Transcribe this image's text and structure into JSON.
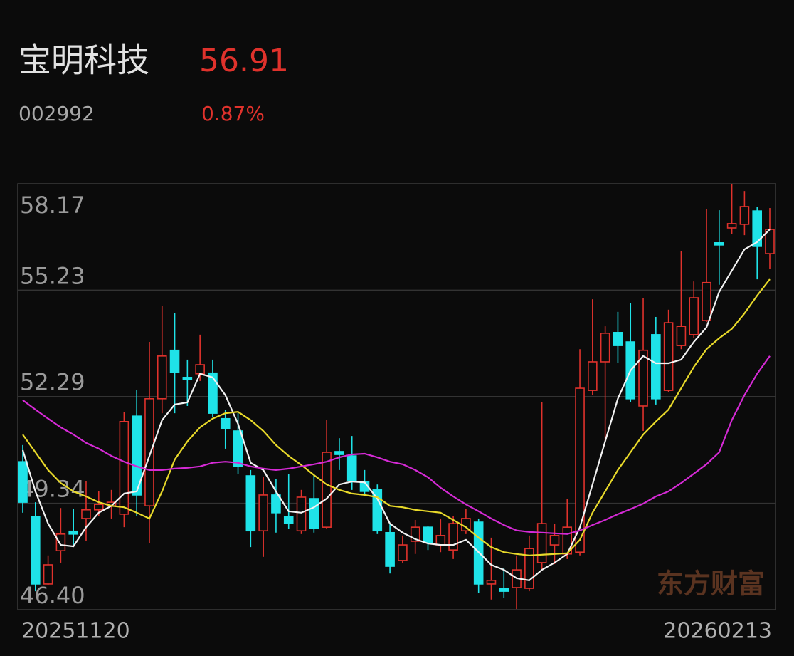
{
  "header": {
    "name": "宝明科技",
    "price": "56.91",
    "code": "002992",
    "change": "0.87%"
  },
  "chart_data": {
    "type": "candlestick",
    "categories": [
      "20251120",
      null,
      null,
      null,
      null,
      null,
      null,
      null,
      null,
      null,
      null,
      null,
      null,
      null,
      null,
      null,
      null,
      null,
      null,
      null,
      null,
      null,
      null,
      null,
      null,
      null,
      null,
      null,
      null,
      null,
      null,
      null,
      null,
      null,
      null,
      null,
      null,
      null,
      null,
      null,
      null,
      null,
      null,
      null,
      null,
      null,
      null,
      null,
      null,
      null,
      null,
      null,
      null,
      null,
      null,
      null,
      null,
      null,
      null,
      "20260213"
    ],
    "open": [
      50.49,
      48.98,
      47.11,
      48.03,
      48.57,
      48.92,
      49.16,
      49.27,
      49.04,
      51.75,
      49.27,
      52.23,
      53.57,
      52.82,
      52.92,
      52.94,
      51.68,
      51.34,
      50.1,
      48.58,
      49.57,
      48.98,
      48.58,
      49.47,
      48.68,
      50.77,
      50.65,
      49.94,
      49.71,
      48.53,
      47.76,
      48.29,
      48.68,
      48.19,
      48.05,
      48.58,
      48.82,
      47.11,
      46.99,
      47.01,
      46.99,
      47.7,
      48.19,
      47.94,
      47.99,
      52.46,
      53.25,
      54.06,
      53.8,
      52.03,
      54.0,
      52.46,
      53.7,
      54.0,
      54.39,
      56.54,
      56.95,
      57.05,
      57.42,
      56.24
    ],
    "close": [
      49.37,
      47.11,
      47.64,
      48.49,
      48.49,
      49.16,
      49.31,
      49.37,
      51.6,
      49.57,
      52.23,
      53.41,
      52.97,
      52.76,
      53.17,
      51.83,
      51.4,
      50.36,
      48.58,
      49.57,
      49.08,
      48.78,
      49.51,
      48.64,
      50.75,
      50.69,
      49.96,
      49.67,
      48.58,
      47.6,
      48.19,
      48.68,
      48.25,
      48.45,
      48.78,
      48.92,
      47.11,
      47.21,
      46.91,
      47.5,
      48.09,
      48.78,
      48.45,
      48.68,
      52.52,
      53.25,
      54.04,
      53.7,
      52.23,
      53.57,
      52.23,
      54.33,
      54.23,
      55.02,
      55.44,
      56.48,
      57.07,
      57.54,
      56.44,
      56.91
    ],
    "high": [
      50.95,
      49.37,
      47.9,
      49.21,
      49.18,
      49.96,
      49.67,
      49.71,
      51.87,
      52.48,
      53.8,
      54.79,
      54.6,
      53.31,
      54.0,
      53.31,
      51.93,
      51.83,
      50.26,
      50.06,
      50.02,
      50.16,
      49.71,
      50.16,
      51.64,
      51.14,
      51.2,
      50.26,
      49.86,
      48.78,
      48.45,
      48.88,
      48.72,
      48.92,
      48.98,
      49.18,
      48.92,
      48.39,
      47.54,
      47.9,
      48.45,
      52.13,
      48.78,
      49.47,
      53.6,
      54.98,
      54.23,
      54.63,
      54.88,
      55.02,
      54.49,
      54.69,
      56.32,
      55.47,
      57.48,
      57.44,
      58.17,
      57.97,
      57.54,
      57.5
    ],
    "low": [
      49.08,
      46.91,
      47.07,
      47.7,
      48.19,
      48.29,
      48.98,
      48.92,
      48.68,
      48.98,
      48.25,
      51.83,
      51.83,
      52.03,
      52.72,
      51.73,
      50.85,
      50.16,
      48.13,
      47.86,
      48.53,
      48.64,
      48.49,
      48.53,
      48.64,
      50.26,
      49.71,
      49.57,
      48.49,
      47.4,
      47.7,
      47.94,
      48.05,
      47.99,
      47.8,
      48.49,
      46.87,
      46.68,
      46.72,
      46.42,
      46.91,
      47.5,
      47.66,
      47.8,
      47.9,
      52.33,
      51.05,
      53.21,
      52.13,
      51.34,
      52.07,
      52.42,
      53.6,
      53.9,
      54.35,
      55.38,
      56.79,
      56.75,
      55.53,
      55.81
    ],
    "up_color": "#e0322c",
    "down_color": "#1fe3e8",
    "series": [
      {
        "color": "#f2f2f2",
        "values": [
          50.81,
          49.67,
          48.78,
          48.19,
          48.15,
          48.68,
          49.08,
          49.27,
          49.61,
          49.67,
          50.65,
          51.64,
          52.07,
          52.13,
          52.92,
          52.82,
          52.33,
          51.54,
          50.46,
          50.26,
          49.67,
          49.12,
          49.08,
          49.23,
          49.47,
          49.86,
          49.94,
          49.92,
          49.47,
          48.78,
          48.53,
          48.35,
          48.23,
          48.19,
          48.19,
          48.33,
          47.99,
          47.64,
          47.5,
          47.27,
          47.21,
          47.5,
          47.7,
          47.94,
          48.68,
          49.86,
          51.05,
          52.23,
          53.01,
          53.41,
          53.21,
          53.21,
          53.31,
          53.8,
          54.2,
          55.18,
          55.77,
          56.36,
          56.56,
          56.91
        ]
      },
      {
        "color": "#e8d92a",
        "values": [
          51.24,
          50.75,
          50.26,
          49.9,
          49.67,
          49.53,
          49.37,
          49.27,
          49.23,
          49.08,
          48.92,
          49.67,
          50.55,
          51.05,
          51.44,
          51.68,
          51.83,
          51.87,
          51.64,
          51.34,
          50.95,
          50.65,
          50.4,
          50.12,
          49.86,
          49.71,
          49.61,
          49.57,
          49.51,
          49.27,
          49.23,
          49.16,
          49.12,
          49.08,
          48.88,
          48.68,
          48.39,
          48.13,
          47.99,
          47.94,
          47.9,
          47.92,
          47.94,
          47.96,
          48.33,
          49.08,
          49.67,
          50.26,
          50.75,
          51.24,
          51.6,
          51.93,
          52.52,
          53.11,
          53.6,
          53.9,
          54.16,
          54.59,
          55.08,
          55.53
        ]
      },
      {
        "color": "#d52ad5",
        "values": [
          52.19,
          51.93,
          51.68,
          51.44,
          51.24,
          51.01,
          50.85,
          50.65,
          50.49,
          50.36,
          50.26,
          50.26,
          50.3,
          50.32,
          50.36,
          50.46,
          50.49,
          50.46,
          50.36,
          50.3,
          50.26,
          50.3,
          50.36,
          50.42,
          50.49,
          50.61,
          50.69,
          50.71,
          50.61,
          50.49,
          50.42,
          50.26,
          50.06,
          49.77,
          49.53,
          49.31,
          49.12,
          48.92,
          48.74,
          48.59,
          48.55,
          48.53,
          48.51,
          48.49,
          48.59,
          48.74,
          48.88,
          49.04,
          49.18,
          49.33,
          49.53,
          49.67,
          49.9,
          50.16,
          50.42,
          50.75,
          51.64,
          52.33,
          52.92,
          53.41
        ]
      }
    ],
    "ylim": [
      46.4,
      58.17
    ],
    "yticks": [
      {
        "value": 46.4,
        "label": "46.40"
      },
      49.34,
      52.29,
      55.23,
      58.17
    ],
    "grid": true,
    "watermark": "东方财富"
  }
}
